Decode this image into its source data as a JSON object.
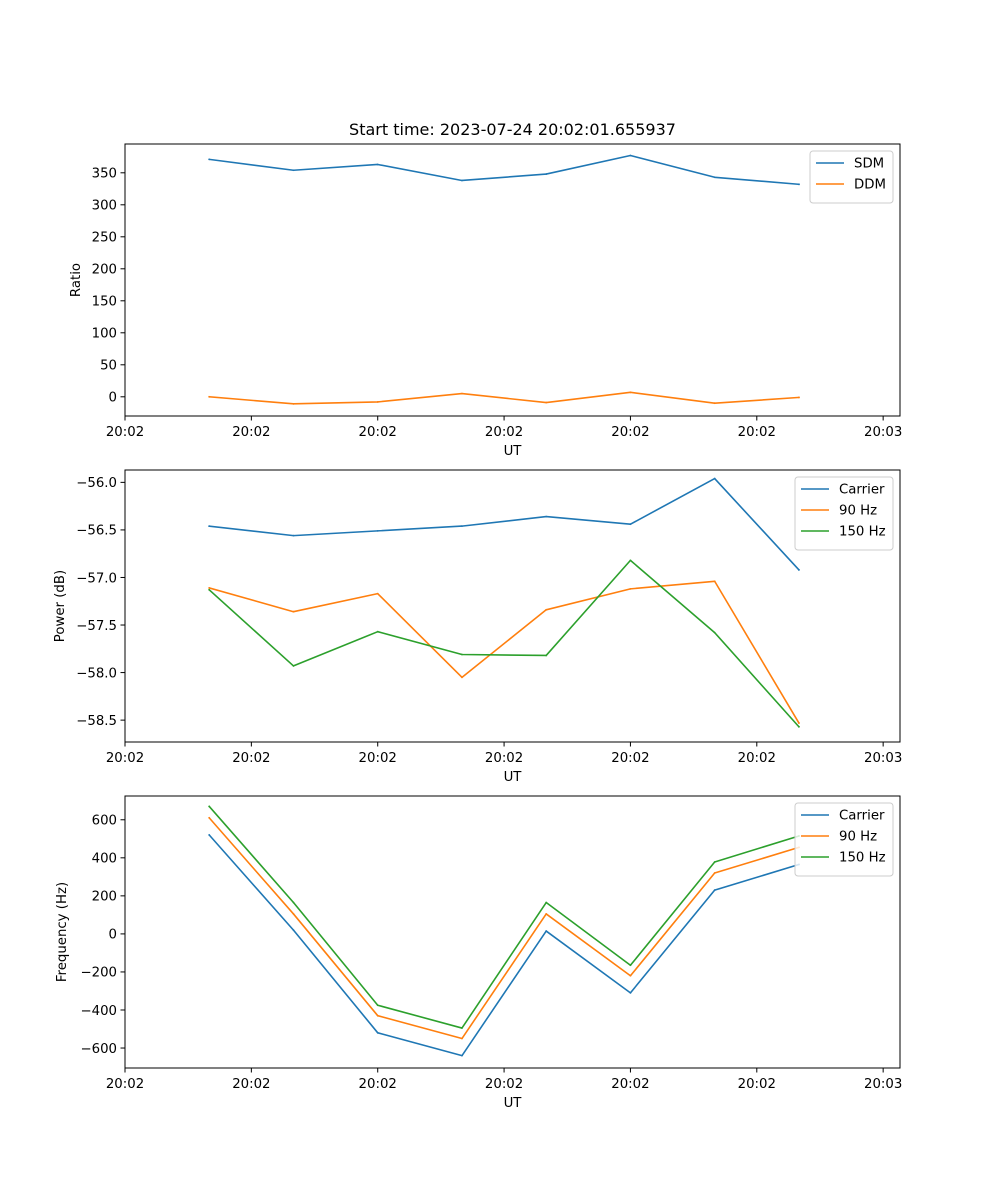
{
  "figure_title": "Start time: 2023-07-24 20:02:01.655937",
  "colors": {
    "blue": "#1f77b4",
    "orange": "#ff7f0e",
    "green": "#2ca02c"
  },
  "chart_data": [
    {
      "type": "line",
      "title": "Start time: 2023-07-24 20:02:01.655937",
      "xlabel": "UT",
      "ylabel": "Ratio",
      "x_index": [
        1,
        2,
        3,
        4,
        5,
        6,
        7,
        8
      ],
      "xlim": [
        0,
        9.2
      ],
      "x_ticks": [
        0,
        1.5,
        3,
        4.5,
        6,
        7.5,
        9
      ],
      "x_tick_labels": [
        "20:02",
        "20:02",
        "20:02",
        "20:02",
        "20:02",
        "20:02",
        "20:03"
      ],
      "ylim": [
        -30,
        395
      ],
      "y_ticks": [
        0,
        50,
        100,
        150,
        200,
        250,
        300,
        350
      ],
      "y_tick_labels": [
        "0",
        "50",
        "100",
        "150",
        "200",
        "250",
        "300",
        "350"
      ],
      "legend_position": "top-right",
      "series": [
        {
          "name": "SDM",
          "color": "#1f77b4",
          "values": [
            371,
            354,
            363,
            338,
            348,
            377,
            343,
            332
          ]
        },
        {
          "name": "DDM",
          "color": "#ff7f0e",
          "values": [
            0,
            -11,
            -8,
            5,
            -9,
            7,
            -10,
            -1
          ]
        }
      ]
    },
    {
      "type": "line",
      "title": "",
      "xlabel": "UT",
      "ylabel": "Power (dB)",
      "x_index": [
        1,
        2,
        3,
        4,
        5,
        6,
        7,
        8
      ],
      "xlim": [
        0,
        9.2
      ],
      "x_ticks": [
        0,
        1.5,
        3,
        4.5,
        6,
        7.5,
        9
      ],
      "x_tick_labels": [
        "20:02",
        "20:02",
        "20:02",
        "20:02",
        "20:02",
        "20:02",
        "20:03"
      ],
      "ylim": [
        -58.73,
        -55.87
      ],
      "y_ticks": [
        -58.5,
        -58.0,
        -57.5,
        -57.0,
        -56.5,
        -56.0
      ],
      "y_tick_labels": [
        "−58.5",
        "−58.0",
        "−57.5",
        "−57.0",
        "−56.5",
        "−56.0"
      ],
      "legend_position": "top-right",
      "series": [
        {
          "name": "Carrier",
          "color": "#1f77b4",
          "values": [
            -56.46,
            -56.56,
            -56.51,
            -56.46,
            -56.36,
            -56.44,
            -55.96,
            -56.92
          ]
        },
        {
          "name": "90 Hz",
          "color": "#ff7f0e",
          "values": [
            -57.11,
            -57.36,
            -57.17,
            -58.05,
            -57.34,
            -57.12,
            -57.04,
            -58.53
          ]
        },
        {
          "name": "150 Hz",
          "color": "#2ca02c",
          "values": [
            -57.13,
            -57.93,
            -57.57,
            -57.81,
            -57.82,
            -56.82,
            -57.58,
            -58.57
          ]
        }
      ]
    },
    {
      "type": "line",
      "title": "",
      "xlabel": "UT",
      "ylabel": "Frequency (Hz)",
      "x_index": [
        1,
        2,
        3,
        4,
        5,
        6,
        7,
        8
      ],
      "xlim": [
        0,
        9.2
      ],
      "x_ticks": [
        0,
        1.5,
        3,
        4.5,
        6,
        7.5,
        9
      ],
      "x_tick_labels": [
        "20:02",
        "20:02",
        "20:02",
        "20:02",
        "20:02",
        "20:02",
        "20:03"
      ],
      "ylim": [
        -705,
        725
      ],
      "y_ticks": [
        -600,
        -400,
        -200,
        0,
        200,
        400,
        600
      ],
      "y_tick_labels": [
        "−600",
        "−400",
        "−200",
        "0",
        "200",
        "400",
        "600"
      ],
      "legend_position": "top-right",
      "series": [
        {
          "name": "Carrier",
          "color": "#1f77b4",
          "values": [
            520,
            20,
            -520,
            -640,
            15,
            -310,
            230,
            365
          ]
        },
        {
          "name": "90 Hz",
          "color": "#ff7f0e",
          "values": [
            610,
            105,
            -430,
            -550,
            105,
            -220,
            320,
            455
          ]
        },
        {
          "name": "150 Hz",
          "color": "#2ca02c",
          "values": [
            670,
            165,
            -375,
            -495,
            165,
            -165,
            378,
            515
          ]
        }
      ]
    }
  ]
}
